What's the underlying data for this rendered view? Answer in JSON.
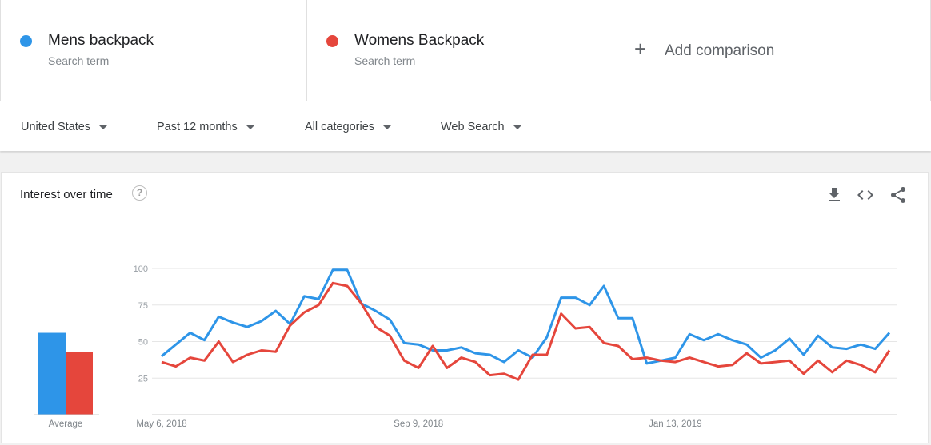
{
  "terms": [
    {
      "name": "Mens backpack",
      "sub": "Search term",
      "color": "#2e95e8"
    },
    {
      "name": "Womens Backpack",
      "sub": "Search term",
      "color": "#e5463c"
    }
  ],
  "add_comparison": "Add comparison",
  "filters": {
    "region": "United States",
    "time": "Past 12 months",
    "category": "All categories",
    "property": "Web Search"
  },
  "card": {
    "title": "Interest over time",
    "help_icon": "help-circle-icon",
    "tools": [
      "download-icon",
      "embed-code-icon",
      "share-icon"
    ]
  },
  "chart_data": {
    "type": "line",
    "ylim": [
      0,
      100
    ],
    "yticks": [
      25,
      50,
      75,
      100
    ],
    "grid": true,
    "x_tick_labels": [
      {
        "index": 0,
        "label": "May 6, 2018"
      },
      {
        "index": 18,
        "label": "Sep 9, 2018"
      },
      {
        "index": 36,
        "label": "Jan 13, 2019"
      }
    ],
    "series": [
      {
        "name": "Mens backpack",
        "color": "#2e95e8",
        "values": [
          40,
          48,
          56,
          51,
          67,
          63,
          60,
          64,
          71,
          62,
          81,
          79,
          99,
          99,
          76,
          71,
          65,
          49,
          48,
          44,
          44,
          46,
          42,
          41,
          36,
          44,
          39,
          53,
          80,
          80,
          75,
          88,
          66,
          66,
          35,
          37,
          39,
          55,
          51,
          55,
          51,
          48,
          39,
          44,
          52,
          41,
          54,
          46,
          45,
          48,
          45,
          56
        ]
      },
      {
        "name": "Womens Backpack",
        "color": "#e5463c",
        "values": [
          36,
          33,
          39,
          37,
          50,
          36,
          41,
          44,
          43,
          61,
          70,
          75,
          90,
          88,
          76,
          60,
          54,
          37,
          32,
          47,
          32,
          39,
          36,
          27,
          28,
          24,
          41,
          41,
          69,
          59,
          60,
          49,
          47,
          38,
          39,
          37,
          36,
          39,
          36,
          33,
          34,
          42,
          35,
          36,
          37,
          28,
          37,
          29,
          37,
          34,
          29,
          44
        ]
      }
    ],
    "average": {
      "label": "Average",
      "values": [
        56,
        43
      ]
    }
  }
}
